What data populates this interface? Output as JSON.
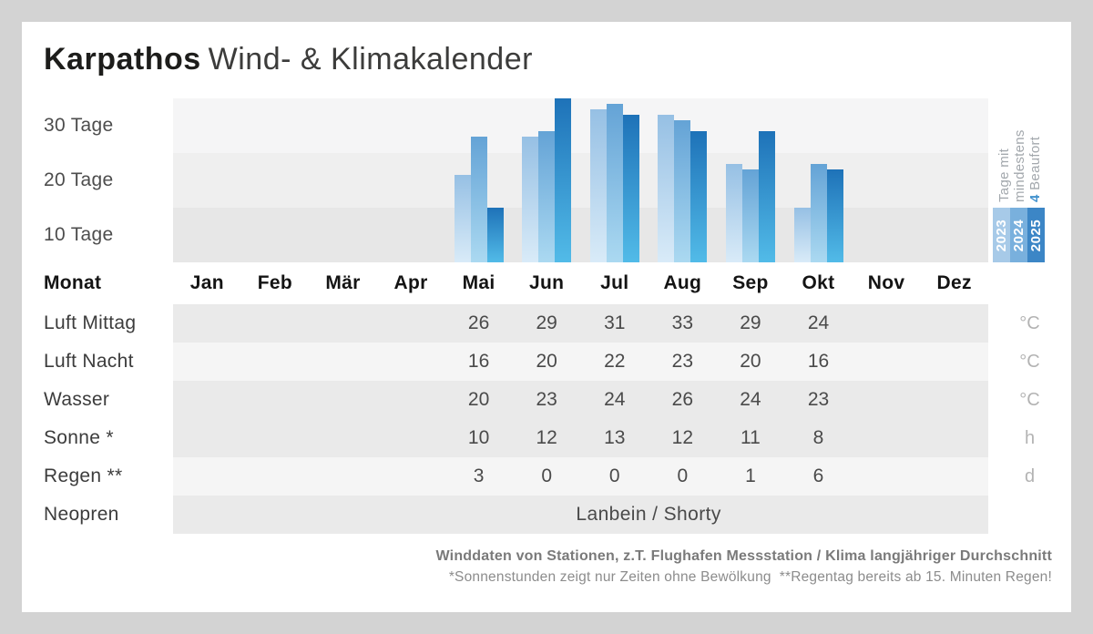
{
  "title": {
    "brand": "Karpathos",
    "subtitle": "Wind- & Klimakalender"
  },
  "colors": {
    "page_bg": "#d3d3d3",
    "card_bg": "#ffffff",
    "accent_blue": "#4191cd",
    "band_dark": "#eaeaea",
    "band_light": "#f5f5f5",
    "stripe_top": "#f5f5f6",
    "stripe_mid": "#efefef",
    "stripe_bottom": "#e7e7e7"
  },
  "chart_data": {
    "type": "bar",
    "title": "Tage mit mindestens 4 Beaufort",
    "ylabel": "Tage",
    "ylim": [
      0,
      30
    ],
    "grid": "horizontal-bands",
    "legend_position": "right",
    "y_axis_labels": [
      "30 Tage",
      "20 Tage",
      "10 Tage"
    ],
    "categories": [
      "Jan",
      "Feb",
      "Mär",
      "Apr",
      "Mai",
      "Jun",
      "Jul",
      "Aug",
      "Sep",
      "Okt",
      "Nov",
      "Dez"
    ],
    "series": [
      {
        "name": "2023",
        "color_top": "#96c0e4",
        "color_bottom": "#d9ebf8",
        "legend_color": "#a7cae8",
        "values": [
          null,
          null,
          null,
          null,
          16,
          23,
          28,
          27,
          18,
          10,
          null,
          null
        ]
      },
      {
        "name": "2024",
        "color_top": "#64a3d6",
        "color_bottom": "#abd9f1",
        "legend_color": "#79b0dd",
        "values": [
          null,
          null,
          null,
          null,
          23,
          24,
          29,
          26,
          17,
          18,
          null,
          null
        ]
      },
      {
        "name": "2025",
        "color_top": "#1e72b8",
        "color_bottom": "#52bbe8",
        "legend_color": "#3c86c6",
        "values": [
          null,
          null,
          null,
          null,
          10,
          30,
          27,
          24,
          24,
          17,
          null,
          null
        ]
      }
    ],
    "legend": {
      "line1": "Tage mit",
      "line2": "mindestens",
      "line3_value": "4",
      "line3_label": "Beaufort"
    }
  },
  "table": {
    "header": {
      "label": "Monat",
      "months": [
        "Jan",
        "Feb",
        "Mär",
        "Apr",
        "Mai",
        "Jun",
        "Jul",
        "Aug",
        "Sep",
        "Okt",
        "Nov",
        "Dez"
      ]
    },
    "rows": [
      {
        "label": "Luft Mittag",
        "unit": "°C",
        "shade": "dark",
        "values": [
          "",
          "",
          "",
          "",
          "26",
          "29",
          "31",
          "33",
          "29",
          "24",
          "",
          ""
        ]
      },
      {
        "label": "Luft Nacht",
        "unit": "°C",
        "shade": "light",
        "values": [
          "",
          "",
          "",
          "",
          "16",
          "20",
          "22",
          "23",
          "20",
          "16",
          "",
          ""
        ]
      },
      {
        "label": "Wasser",
        "unit": "°C",
        "shade": "dark",
        "values": [
          "",
          "",
          "",
          "",
          "20",
          "23",
          "24",
          "26",
          "24",
          "23",
          "",
          ""
        ]
      },
      {
        "label": "Sonne *",
        "unit": "h",
        "shade": "dark",
        "values": [
          "",
          "",
          "",
          "",
          "10",
          "12",
          "13",
          "12",
          "11",
          "8",
          "",
          ""
        ]
      },
      {
        "label": "Regen **",
        "unit": "d",
        "shade": "light",
        "values": [
          "",
          "",
          "",
          "",
          "3",
          "0",
          "0",
          "0",
          "1",
          "6",
          "",
          ""
        ]
      },
      {
        "label": "Neopren",
        "unit": "",
        "shade": "dark",
        "values": [
          "",
          "",
          "",
          "",
          "",
          "",
          "",
          "",
          "",
          "",
          "",
          ""
        ],
        "span_text": "Lanbein / Shorty",
        "span_start": 4,
        "span_end": 9
      }
    ]
  },
  "footer": {
    "line1": "Winddaten von Stationen, z.T. Flughafen Messstation / Klima langjähriger Durchschnitt",
    "line2": "*Sonnenstunden zeigt nur Zeiten ohne Bewölkung  **Regentag bereits ab 15. Minuten Regen!"
  }
}
